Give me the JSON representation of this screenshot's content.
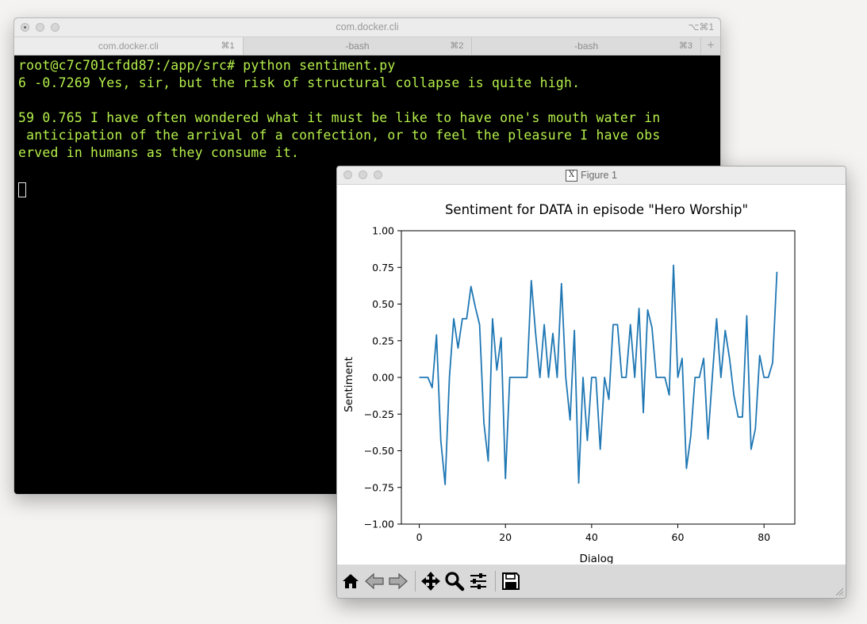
{
  "terminal": {
    "title": "com.docker.cli",
    "shortcut": "⌥⌘1",
    "tabs": [
      {
        "label": "com.docker.cli",
        "key": "⌘1"
      },
      {
        "label": "-bash",
        "key": "⌘2"
      },
      {
        "label": "-bash",
        "key": "⌘3"
      }
    ],
    "add_tab": "+",
    "lines": [
      "root@c7c701cfdd87:/app/src# python sentiment.py",
      "6 -0.7269 Yes, sir, but the risk of structural collapse is quite high.",
      "",
      "59 0.765 I have often wondered what it must be like to have one's mouth water in",
      " anticipation of the arrival of a confection, or to feel the pleasure I have obs",
      "erved in humans as they consume it.",
      ""
    ],
    "text_color": "#b5f04b"
  },
  "figure": {
    "title": "Figure 1",
    "toolbar": [
      "home-icon",
      "back-icon",
      "forward-icon",
      "pan-icon",
      "zoom-icon",
      "configure-icon",
      "save-icon"
    ]
  },
  "chart_data": {
    "type": "line",
    "title": "Sentiment for DATA in episode \"Hero Worship\"",
    "xlabel": "Dialog",
    "ylabel": "Sentiment",
    "xlim": [
      -4.15,
      87.15
    ],
    "ylim": [
      -1.0,
      1.0
    ],
    "xticks": [
      0,
      20,
      40,
      60,
      80
    ],
    "yticks": [
      -1.0,
      -0.75,
      -0.5,
      -0.25,
      0.0,
      0.25,
      0.5,
      0.75,
      1.0
    ],
    "ytick_labels": [
      "−1.00",
      "−0.75",
      "−0.50",
      "−0.25",
      "0.00",
      "0.25",
      "0.50",
      "0.75",
      "1.00"
    ],
    "grid": false,
    "color": "#1f77b4",
    "series": [
      {
        "values": [
          0,
          0,
          0,
          -0.07,
          0.29,
          -0.43,
          -0.73,
          0,
          0.4,
          0.2,
          0.4,
          0.4,
          0.62,
          0.48,
          0.36,
          -0.31,
          -0.57,
          0.4,
          0.05,
          0.27,
          -0.69,
          0,
          0,
          0,
          0,
          0,
          0.66,
          0.3,
          0,
          0.36,
          0,
          0.3,
          0,
          0.64,
          0,
          -0.29,
          0.32,
          -0.72,
          0,
          -0.43,
          0,
          0,
          -0.49,
          0,
          -0.15,
          0.36,
          0.36,
          0,
          0,
          0.36,
          0,
          0.47,
          -0.24,
          0.46,
          0.34,
          0,
          0,
          0,
          -0.12,
          0.765,
          0,
          0.13,
          -0.62,
          -0.4,
          0,
          0,
          0.13,
          -0.42,
          0,
          0.4,
          0,
          0.32,
          0.13,
          -0.12,
          -0.27,
          -0.27,
          0.42,
          -0.49,
          -0.35,
          0.15,
          0,
          0,
          0.1,
          0.72
        ]
      }
    ]
  }
}
